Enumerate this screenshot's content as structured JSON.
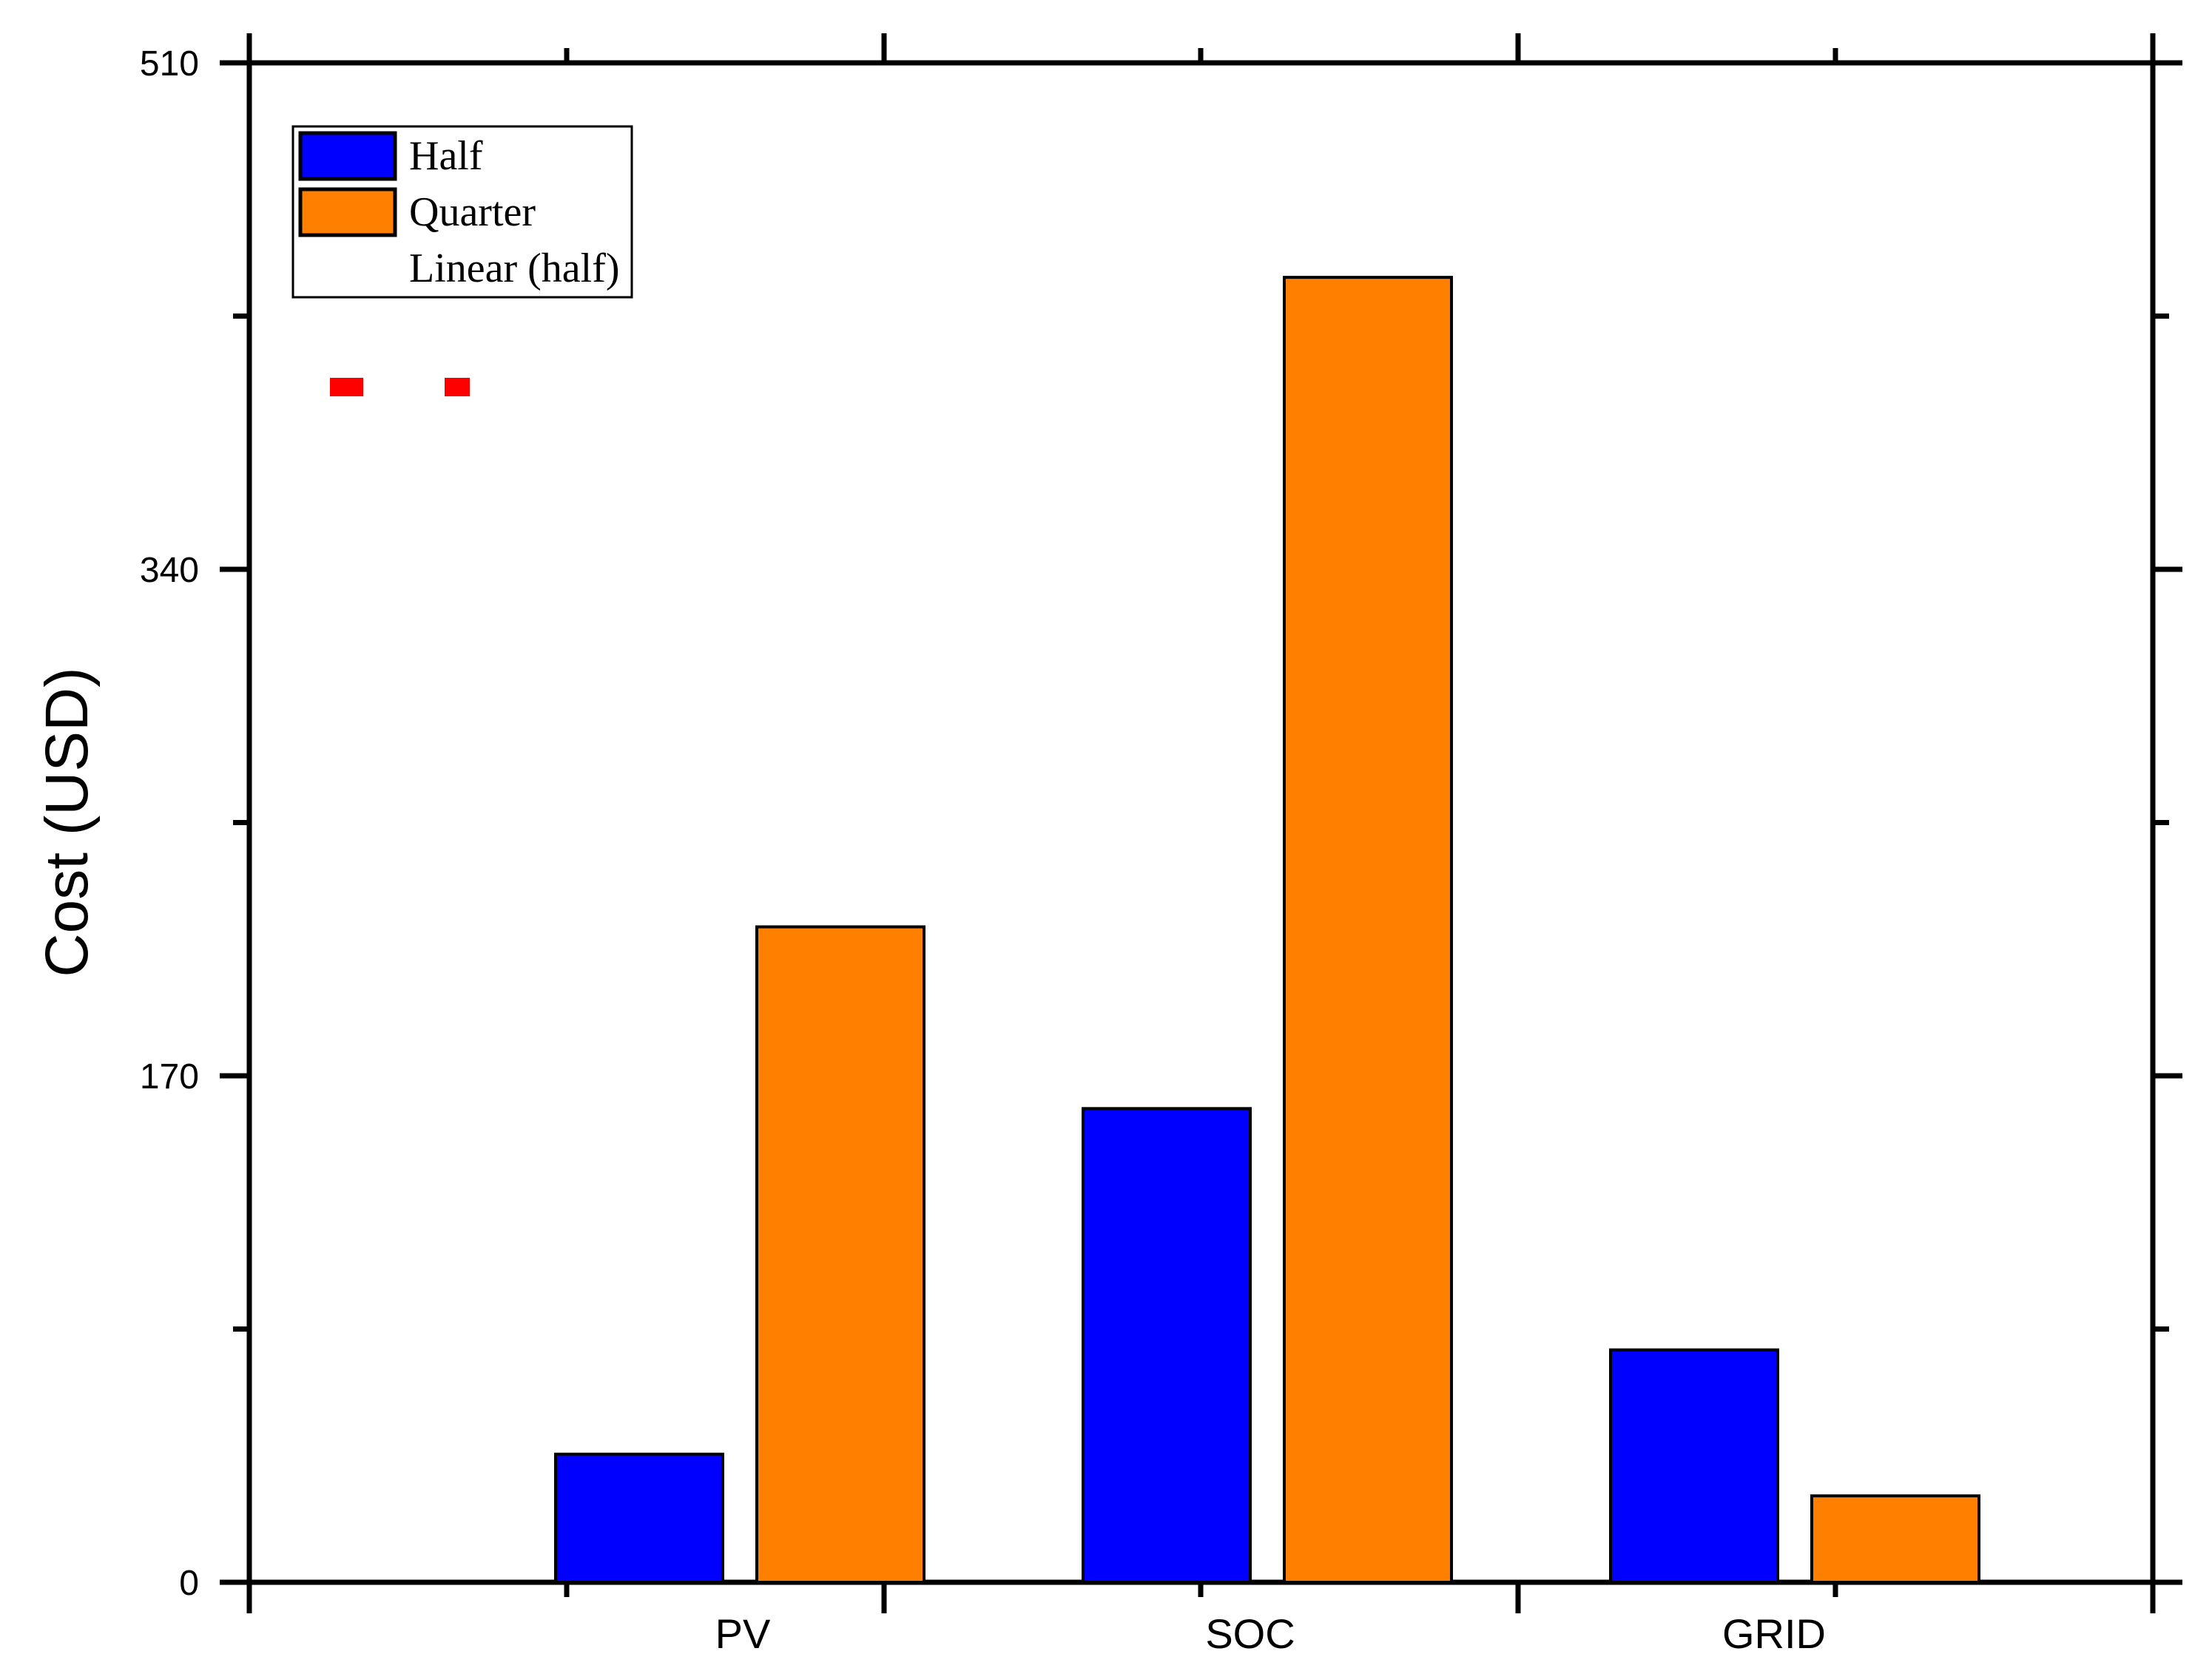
{
  "chart_data": {
    "type": "bar",
    "categories": [
      "PV",
      "SOC",
      "GRID"
    ],
    "series": [
      {
        "name": "Half",
        "values": [
          43,
          159,
          78
        ],
        "color": "#0000ff"
      },
      {
        "name": "Quarter",
        "values": [
          220,
          438,
          29
        ],
        "color": "#ff7f00"
      }
    ],
    "trendline": {
      "name": "Linear (half)",
      "color": "#ff0000",
      "style": "dashed"
    },
    "ylabel": "Cost (USD)",
    "xlabel": "",
    "ylim": [
      0,
      510
    ],
    "yticks": [
      "0",
      "170",
      "340",
      "510"
    ],
    "grid": false,
    "legend_position": "top-left"
  }
}
